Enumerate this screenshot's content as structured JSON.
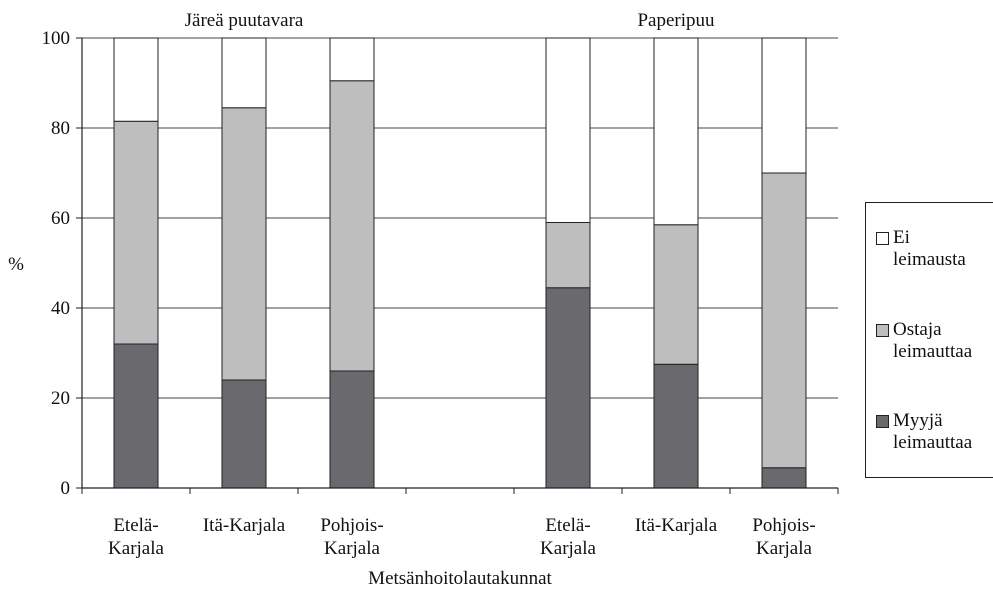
{
  "chart_data": {
    "type": "bar",
    "stacked": true,
    "ylabel": "%",
    "xlabel": "Metsänhoitolautakunnat",
    "ylim": [
      0,
      100
    ],
    "yticks": [
      0,
      20,
      40,
      60,
      80,
      100
    ],
    "grid": true,
    "legend_position": "right",
    "groups": [
      {
        "title": "Järeä puutavara",
        "categories": [
          [
            "Etelä-",
            "Karjala"
          ],
          [
            "Itä-Karjala"
          ],
          [
            "Pohjois-",
            "Karjala"
          ]
        ],
        "series": [
          {
            "name": "Myyjä leimauttaa",
            "values": [
              32,
              24,
              26
            ]
          },
          {
            "name": "Ostaja leimauttaa",
            "values": [
              49.5,
              60.5,
              64.5
            ]
          },
          {
            "name": "Ei leimausta",
            "values": [
              18.5,
              15.5,
              9.5
            ]
          }
        ]
      },
      {
        "title": "Paperipuu",
        "categories": [
          [
            "Etelä-",
            "Karjala"
          ],
          [
            "Itä-Karjala"
          ],
          [
            "Pohjois-",
            "Karjala"
          ]
        ],
        "series": [
          {
            "name": "Myyjä leimauttaa",
            "values": [
              44.5,
              27.5,
              4.5
            ]
          },
          {
            "name": "Ostaja leimauttaa",
            "values": [
              14.5,
              31,
              65.5
            ]
          },
          {
            "name": "Ei leimausta",
            "values": [
              41,
              41.5,
              30
            ]
          }
        ]
      }
    ]
  },
  "colors": {
    "Myyjä leimauttaa": "#6a6a6e",
    "Ostaja leimauttaa": "#bebebe",
    "Ei leimausta": "#ffffff",
    "grid": "#444444",
    "axis": "#222222"
  },
  "legend": {
    "items": [
      {
        "key": "Ei leimausta",
        "lines": [
          "Ei",
          "leimausta"
        ]
      },
      {
        "key": "Ostaja leimauttaa",
        "lines": [
          "Ostaja",
          "leimauttaa"
        ]
      },
      {
        "key": "Myyjä leimauttaa",
        "lines": [
          "Myyjä",
          "leimauttaa"
        ]
      }
    ]
  }
}
